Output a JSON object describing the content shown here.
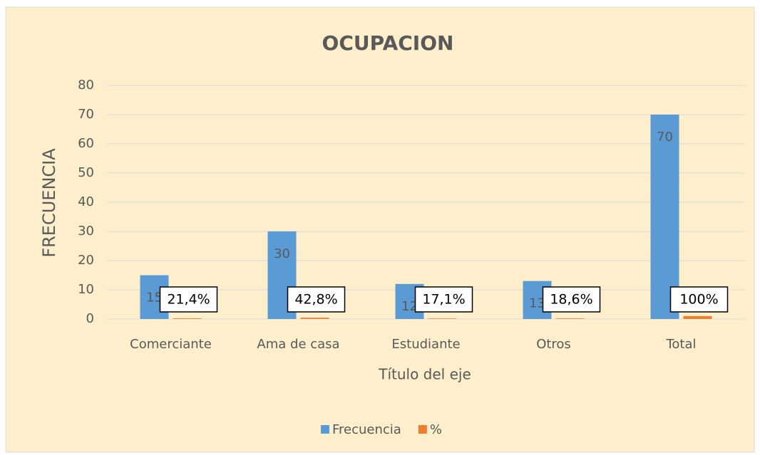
{
  "chart_data": {
    "type": "bar",
    "title": "OCUPACION",
    "x_label": "Título del eje",
    "y_label": "FRECUENCIA",
    "categories": [
      "Comerciante",
      "Ama de casa",
      "Estudiante",
      "Otros",
      "Total"
    ],
    "series": [
      {
        "name": "Frecuencia",
        "color": "#5b9bd5",
        "values": [
          15,
          30,
          12,
          13,
          70
        ]
      },
      {
        "name": "%",
        "color": "#ed7d31",
        "values": [
          0.214,
          0.428,
          0.171,
          0.186,
          1
        ],
        "value_labels": [
          "21,4%",
          "42,8%",
          "17,1%",
          "18,6%",
          "100%"
        ]
      }
    ],
    "ylim": [
      0,
      80
    ],
    "yticks": [
      0,
      10,
      20,
      30,
      40,
      50,
      60,
      70,
      80
    ],
    "grid": true,
    "legend": "bottom"
  }
}
